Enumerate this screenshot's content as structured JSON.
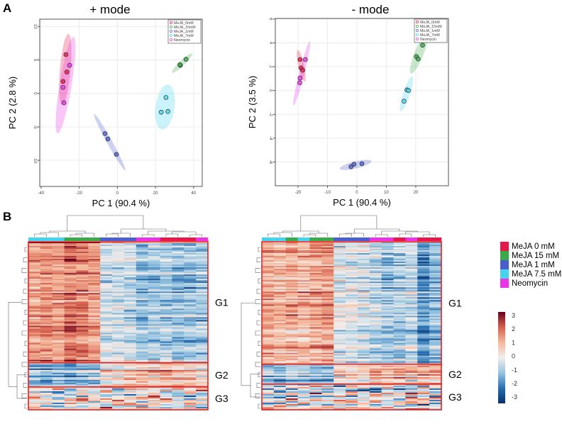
{
  "panels": {
    "a_label": "A",
    "b_label": "B"
  },
  "groups": [
    {
      "key": "R",
      "name": "MeJA 0 mM",
      "plot_name": "MeJA_0mM",
      "color": "#e8174a"
    },
    {
      "key": "G",
      "name": "MeJA 15 mM",
      "plot_name": "MeJA_15mM",
      "color": "#3aaa48"
    },
    {
      "key": "B",
      "name": "MeJA 1 mM",
      "plot_name": "MeJA_1mM",
      "color": "#4a5fcf"
    },
    {
      "key": "C",
      "name": "MeJA 7.5 mM",
      "plot_name": "MeJA_7mM",
      "color": "#45d4f0"
    },
    {
      "key": "N",
      "name": "Neomycin",
      "plot_name": "Neomycin",
      "color": "#ea34e6"
    }
  ],
  "colorbar": {
    "ticks": [
      "3",
      "2",
      "1",
      "0",
      "-1",
      "-2",
      "-3"
    ],
    "range": [
      -3,
      3
    ]
  },
  "chart_data": [
    {
      "type": "scatter",
      "title": "+ mode",
      "xlabel": "PC 1 (90.4 %)",
      "ylabel": "PC 2 (2.8 %)",
      "xlim": [
        -40.7,
        44.5
      ],
      "ylim": [
        -13.9,
        11.1
      ],
      "xticks": [
        "-40",
        "-20",
        "0",
        "20",
        "40"
      ],
      "yticks": [
        "10",
        "5",
        "0",
        "-5",
        "-10"
      ],
      "grid": true,
      "legend": "top-right",
      "series": [
        {
          "name": "MeJA_0mM",
          "points": [
            [
              -27,
              5.8
            ],
            [
              -26.5,
              3.2
            ],
            [
              -28.5,
              1.8
            ]
          ]
        },
        {
          "name": "MeJA_15mM",
          "points": [
            [
              33,
              4.2
            ],
            [
              32.8,
              4.3
            ],
            [
              36,
              5.1
            ]
          ]
        },
        {
          "name": "MeJA_1mM",
          "points": [
            [
              -6.5,
              -6
            ],
            [
              -5,
              -6.8
            ],
            [
              -0.5,
              -9.1
            ]
          ]
        },
        {
          "name": "MeJA_7mM",
          "points": [
            [
              25.5,
              -0.6
            ],
            [
              23,
              -2.8
            ],
            [
              26.5,
              -2.7
            ]
          ]
        },
        {
          "name": "Neomycin",
          "points": [
            [
              -25,
              4.2
            ],
            [
              -28.5,
              0.9
            ],
            [
              -28,
              -1.4
            ]
          ]
        }
      ]
    },
    {
      "type": "scatter",
      "title": "- mode",
      "xlabel": "PC 1 (90.4 %)",
      "ylabel": "PC 2 (3.5 %)",
      "xlim": [
        -27.7,
        31.1
      ],
      "ylim": [
        -8.0,
        6.05
      ],
      "xticks": [
        "-20",
        "-10",
        "0",
        "10",
        "20"
      ],
      "yticks": [
        "6",
        "4",
        "2",
        "0",
        "-2",
        "-4",
        "-6"
      ],
      "grid": true,
      "legend": "top-right",
      "series": [
        {
          "name": "MeJA_0mM",
          "points": [
            [
              -19.3,
              2.6
            ],
            [
              -19,
              1.9
            ],
            [
              -18.4,
              1.7
            ]
          ]
        },
        {
          "name": "MeJA_15mM",
          "points": [
            [
              20.2,
              2.85
            ],
            [
              20.8,
              2.65
            ],
            [
              22.3,
              3.8
            ]
          ]
        },
        {
          "name": "MeJA_1mM",
          "points": [
            [
              -2,
              -6.4
            ],
            [
              -1,
              -6.2
            ],
            [
              1.7,
              -6.15
            ]
          ]
        },
        {
          "name": "MeJA_7mM",
          "points": [
            [
              17,
              0.05
            ],
            [
              17.5,
              0.0
            ],
            [
              16,
              -0.9
            ]
          ]
        },
        {
          "name": "Neomycin",
          "points": [
            [
              -17.5,
              2.6
            ],
            [
              -19.3,
              1.05
            ],
            [
              -19.4,
              0.65
            ]
          ]
        }
      ]
    },
    {
      "type": "heatmap",
      "mode": "+ mode",
      "column_groups": [
        "C",
        "C",
        "C",
        "G",
        "G",
        "G",
        "B",
        "B",
        "B",
        "N",
        "N",
        "R",
        "R",
        "R",
        "N"
      ],
      "row_clusters": [
        {
          "label": "G1",
          "rows": 85,
          "column_means": [
            1.2,
            1.5,
            1.3,
            1.8,
            1.6,
            1.3,
            -0.3,
            -0.4,
            -0.5,
            -1.0,
            -0.9,
            -0.8,
            -1.1,
            -1.0,
            -0.8
          ]
        },
        {
          "label": "G2",
          "rows": 17,
          "column_means": [
            -1.0,
            -1.2,
            -1.0,
            -1.3,
            -1.1,
            -0.9,
            0.3,
            0.2,
            0.5,
            0.8,
            0.7,
            0.9,
            0.8,
            0.6,
            0.5
          ]
        },
        {
          "label": "G3",
          "rows": 16,
          "column_means": [
            0,
            0,
            0,
            0,
            0,
            0,
            0,
            0,
            0,
            0,
            0,
            0,
            0,
            0,
            0
          ]
        }
      ]
    },
    {
      "type": "heatmap",
      "mode": "- mode",
      "column_groups": [
        "C",
        "C",
        "G",
        "C",
        "G",
        "G",
        "B",
        "B",
        "B",
        "N",
        "N",
        "R",
        "N",
        "R",
        "R"
      ],
      "row_clusters": [
        {
          "label": "G1",
          "rows": 86,
          "column_means": [
            1.2,
            1.0,
            1.1,
            0.9,
            1.3,
            1.4,
            -0.2,
            -0.1,
            -0.3,
            -0.6,
            -0.8,
            -0.7,
            -0.5,
            -1.5,
            -1.0
          ]
        },
        {
          "label": "G2",
          "rows": 14,
          "column_means": [
            -1.0,
            -1.3,
            -0.9,
            -0.8,
            -1.0,
            -1.1,
            0.2,
            0.4,
            0.3,
            0.7,
            0.6,
            0.8,
            0.6,
            1.0,
            0.9
          ]
        },
        {
          "label": "G3",
          "rows": 18,
          "column_means": [
            0,
            0,
            0,
            0,
            0,
            0,
            0,
            0,
            0,
            0,
            0,
            0,
            0,
            0,
            0
          ]
        }
      ]
    }
  ]
}
